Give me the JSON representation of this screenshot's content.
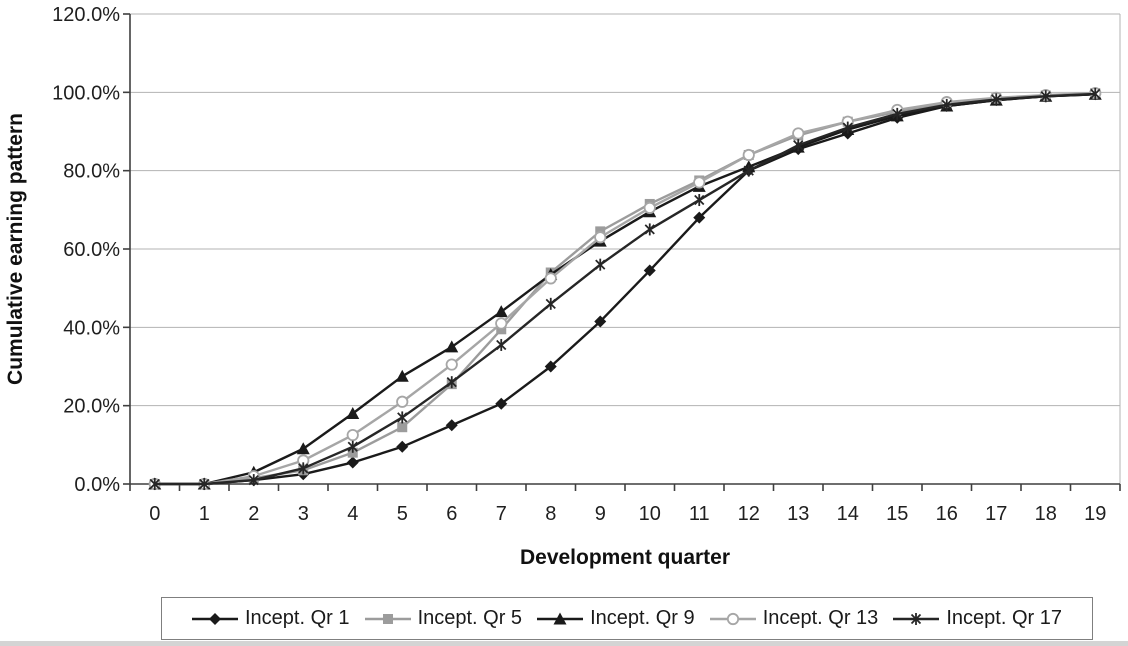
{
  "chart_data": {
    "type": "line",
    "title": "",
    "xlabel": "Development quarter",
    "ylabel": "Cumulative earning pattern",
    "categories": [
      0,
      1,
      2,
      3,
      4,
      5,
      6,
      7,
      8,
      9,
      10,
      11,
      12,
      13,
      14,
      15,
      16,
      17,
      18,
      19
    ],
    "ylim": [
      0,
      120
    ],
    "y_tick_labels": [
      "0.0%",
      "20.0%",
      "40.0%",
      "60.0%",
      "80.0%",
      "100.0%",
      "120.0%"
    ],
    "grid": "horizontal",
    "legend_position": "bottom-outside",
    "axis_color": "#3f3f3f",
    "grid_color": "#b3b3b3",
    "background": "#ffffff",
    "series": [
      {
        "name": "Incept. Qr 1",
        "marker": "diamond",
        "color": "#1a1a1a",
        "marker_fill": "#1a1a1a",
        "values": [
          0,
          0,
          1,
          2.5,
          5.5,
          9.5,
          15,
          20.5,
          30,
          41.5,
          54.5,
          68,
          80,
          85.5,
          89.5,
          93.5,
          96.5,
          98,
          99,
          99.5
        ]
      },
      {
        "name": "Incept. Qr 5",
        "marker": "square",
        "color": "#9c9c9c",
        "marker_fill": "#9c9c9c",
        "values": [
          0,
          0,
          1.5,
          3.5,
          8,
          14.5,
          25.5,
          39.5,
          54,
          64.5,
          71.5,
          77.5,
          84,
          89,
          92.5,
          95,
          97,
          98.5,
          99.2,
          99.8
        ]
      },
      {
        "name": "Incept. Qr 9",
        "marker": "triangle",
        "color": "#1a1a1a",
        "marker_fill": "#1a1a1a",
        "values": [
          0,
          0,
          3,
          9,
          18,
          27.5,
          35,
          44,
          53.5,
          62,
          69.5,
          76,
          81,
          86,
          90.5,
          94,
          96.5,
          98,
          99,
          99.5
        ]
      },
      {
        "name": "Incept. Qr 13",
        "marker": "circle",
        "color": "#a6a6a6",
        "marker_fill": "#ffffff",
        "values": [
          0,
          0,
          2,
          6,
          12.5,
          21,
          30.5,
          41,
          52.5,
          63,
          70.5,
          77,
          84,
          89.5,
          92.5,
          95.5,
          97.5,
          98.6,
          99.3,
          99.8
        ]
      },
      {
        "name": "Incept. Qr 17",
        "marker": "star",
        "color": "#262626",
        "marker_fill": "#262626",
        "values": [
          0,
          0,
          1,
          4,
          9.5,
          17,
          26,
          35.5,
          46,
          56,
          65,
          72.5,
          80,
          86.5,
          91,
          94.5,
          96.8,
          98.2,
          99,
          99.6
        ]
      }
    ]
  }
}
